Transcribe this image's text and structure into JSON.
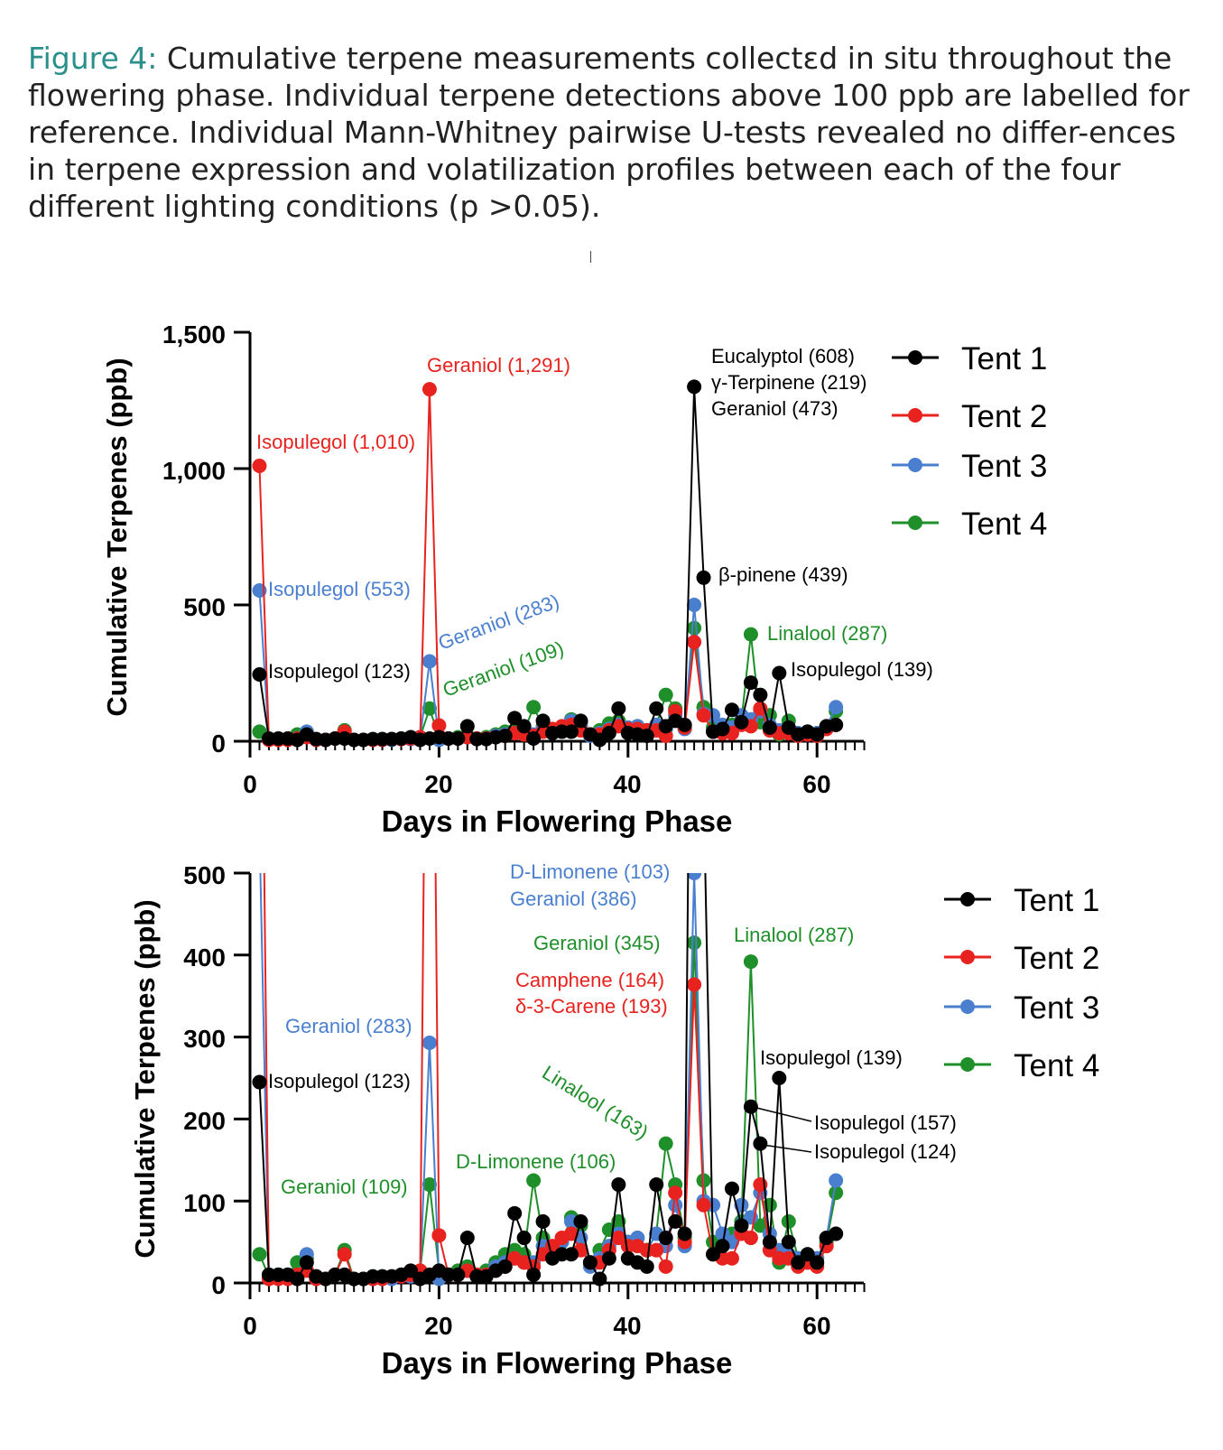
{
  "caption": {
    "lead": "Figure 4:",
    "text": "Cumulative terpene measurements collectɛd in situ throughout the flowering phase. Individual terpene detections above 100 ppb are labelled for reference. Individual Mann-Whitney pairwise U-tests revealed no differ-ences in terpene expression and volatilization profiles between each of the four different lighting conditions (p >0.05)."
  },
  "colors": {
    "tent1": "#000000",
    "tent2": "#e8231f",
    "tent3": "#4a7fd0",
    "tent4": "#1f8f2a",
    "caption_lead": "#2a8f8a"
  },
  "chart_data": [
    {
      "type": "line",
      "xlabel": "Days in Flowering Phase",
      "ylabel": "Cumulative Terpenes (ppb)",
      "xlim": [
        0,
        65
      ],
      "ylim": [
        0,
        1500
      ],
      "xticks": [
        "0",
        "20",
        "40",
        "60"
      ],
      "yticks": [
        "0",
        "500",
        "1,000",
        "1,500"
      ],
      "legend": [
        "Tent 1",
        "Tent 2",
        "Tent 3",
        "Tent 4"
      ],
      "legend_position": "right",
      "annotations": [
        {
          "text": "Geraniol (1,291)",
          "series": "Tent 2"
        },
        {
          "text": "Isopulegol (1,010)",
          "series": "Tent 2"
        },
        {
          "text": "Isopulegol (553)",
          "series": "Tent 3"
        },
        {
          "text": "Isopulegol (123)",
          "series": "Tent 1"
        },
        {
          "text": "Geraniol (283)",
          "series": "Tent 3"
        },
        {
          "text": "Geraniol (109)",
          "series": "Tent 4"
        },
        {
          "text": "Eucalyptol (608)",
          "series": "Tent 1"
        },
        {
          "text": "γ-Terpinene (219)",
          "series": "Tent 1"
        },
        {
          "text": "Geraniol (473)",
          "series": "Tent 1"
        },
        {
          "text": "β-pinene (439)",
          "series": "Tent 1"
        },
        {
          "text": "Linalool (287)",
          "series": "Tent 4"
        },
        {
          "text": "Isopulegol (139)",
          "series": "Tent 1"
        }
      ]
    },
    {
      "type": "line",
      "xlabel": "Days in Flowering Phase",
      "ylabel": "Cumulative Terpenes (ppb)",
      "xlim": [
        0,
        65
      ],
      "ylim": [
        0,
        500
      ],
      "xticks": [
        "0",
        "20",
        "40",
        "60"
      ],
      "yticks": [
        "0",
        "100",
        "200",
        "300",
        "400",
        "500"
      ],
      "legend": [
        "Tent 1",
        "Tent 2",
        "Tent 3",
        "Tent 4"
      ],
      "legend_position": "right",
      "annotations": [
        {
          "text": "D-Limonene (103)",
          "series": "Tent 3"
        },
        {
          "text": "Geraniol (386)",
          "series": "Tent 3"
        },
        {
          "text": "Geraniol (345)",
          "series": "Tent 4"
        },
        {
          "text": "Camphene (164)",
          "series": "Tent 2"
        },
        {
          "text": "δ-3-Carene (193)",
          "series": "Tent 2"
        },
        {
          "text": "Linalool (287)",
          "series": "Tent 4"
        },
        {
          "text": "Geraniol (283)",
          "series": "Tent 3"
        },
        {
          "text": "Isopulegol (123)",
          "series": "Tent 1"
        },
        {
          "text": "Isopulegol (139)",
          "series": "Tent 1"
        },
        {
          "text": "Isopulegol (157)",
          "series": "Tent 1"
        },
        {
          "text": "Isopulegol (124)",
          "series": "Tent 1"
        },
        {
          "text": "Linalool (163)",
          "series": "Tent 4"
        },
        {
          "text": "D-Limonene (106)",
          "series": "Tent 4"
        },
        {
          "text": "Geraniol (109)",
          "series": "Tent 4"
        }
      ]
    }
  ],
  "series": [
    {
      "name": "Tent 1",
      "color": "#000000",
      "x": [
        1,
        2,
        3,
        4,
        5,
        6,
        7,
        8,
        9,
        10,
        11,
        12,
        13,
        14,
        15,
        16,
        17,
        18,
        19,
        20,
        21,
        22,
        23,
        24,
        25,
        26,
        27,
        28,
        29,
        30,
        31,
        32,
        33,
        34,
        35,
        36,
        37,
        38,
        39,
        40,
        41,
        42,
        43,
        44,
        45,
        46,
        47,
        48,
        49,
        50,
        51,
        52,
        53,
        54,
        55,
        56,
        57,
        58,
        59,
        60,
        61,
        62
      ],
      "y": [
        245,
        10,
        10,
        10,
        5,
        25,
        8,
        5,
        10,
        10,
        5,
        5,
        8,
        8,
        8,
        10,
        15,
        5,
        10,
        15,
        10,
        10,
        55,
        8,
        8,
        15,
        20,
        85,
        55,
        10,
        75,
        30,
        35,
        35,
        75,
        25,
        5,
        30,
        120,
        30,
        25,
        20,
        120,
        55,
        75,
        60,
        1300,
        600,
        35,
        45,
        115,
        70,
        215,
        170,
        50,
        250,
        50,
        25,
        35,
        25,
        55,
        60
      ]
    },
    {
      "name": "Tent 2",
      "color": "#e8231f",
      "x": [
        1,
        2,
        3,
        4,
        5,
        6,
        7,
        8,
        9,
        10,
        11,
        12,
        13,
        14,
        15,
        16,
        17,
        18,
        19,
        20,
        21,
        22,
        23,
        24,
        25,
        26,
        27,
        28,
        29,
        30,
        31,
        32,
        33,
        34,
        35,
        36,
        37,
        38,
        39,
        40,
        41,
        42,
        43,
        44,
        45,
        46,
        47,
        48,
        49,
        50,
        51,
        52,
        53,
        54,
        55,
        56,
        57,
        58,
        59,
        60,
        61,
        62
      ],
      "y": [
        1010,
        5,
        5,
        5,
        10,
        15,
        5,
        5,
        10,
        35,
        5,
        5,
        5,
        5,
        8,
        8,
        10,
        15,
        1291,
        58,
        10,
        10,
        15,
        10,
        10,
        15,
        20,
        30,
        25,
        20,
        35,
        45,
        55,
        60,
        40,
        25,
        25,
        40,
        55,
        45,
        45,
        40,
        40,
        20,
        110,
        50,
        364,
        95,
        35,
        30,
        30,
        60,
        55,
        120,
        40,
        30,
        30,
        20,
        25,
        20,
        45,
        60
      ]
    },
    {
      "name": "Tent 3",
      "color": "#4a7fd0",
      "x": [
        1,
        2,
        3,
        4,
        5,
        6,
        7,
        8,
        9,
        10,
        11,
        12,
        13,
        14,
        15,
        16,
        17,
        18,
        19,
        20,
        21,
        22,
        23,
        24,
        25,
        26,
        27,
        28,
        29,
        30,
        31,
        32,
        33,
        34,
        35,
        36,
        37,
        38,
        39,
        40,
        41,
        42,
        43,
        44,
        45,
        46,
        47,
        48,
        49,
        50,
        51,
        52,
        53,
        54,
        55,
        56,
        57,
        58,
        59,
        60,
        61,
        62
      ],
      "y": [
        553,
        8,
        10,
        10,
        10,
        35,
        8,
        5,
        10,
        10,
        5,
        5,
        5,
        8,
        5,
        10,
        8,
        10,
        293,
        5,
        10,
        10,
        15,
        10,
        10,
        20,
        25,
        30,
        25,
        25,
        45,
        40,
        50,
        75,
        55,
        20,
        30,
        45,
        60,
        50,
        55,
        40,
        60,
        45,
        95,
        45,
        500,
        100,
        95,
        60,
        50,
        95,
        80,
        110,
        60,
        40,
        35,
        30,
        25,
        30,
        55,
        125
      ]
    },
    {
      "name": "Tent 4",
      "color": "#1f8f2a",
      "x": [
        1,
        2,
        3,
        4,
        5,
        6,
        7,
        8,
        9,
        10,
        11,
        12,
        13,
        14,
        15,
        16,
        17,
        18,
        19,
        20,
        21,
        22,
        23,
        24,
        25,
        26,
        27,
        28,
        29,
        30,
        31,
        32,
        33,
        34,
        35,
        36,
        37,
        38,
        39,
        40,
        41,
        42,
        43,
        44,
        45,
        46,
        47,
        48,
        49,
        50,
        51,
        52,
        53,
        54,
        55,
        56,
        57,
        58,
        59,
        60,
        61,
        62
      ],
      "y": [
        35,
        8,
        10,
        10,
        25,
        30,
        8,
        5,
        10,
        40,
        5,
        5,
        8,
        8,
        8,
        10,
        10,
        15,
        120,
        15,
        10,
        15,
        20,
        10,
        15,
        25,
        35,
        40,
        35,
        125,
        55,
        35,
        50,
        80,
        70,
        25,
        40,
        65,
        75,
        50,
        55,
        40,
        60,
        170,
        120,
        55,
        415,
        125,
        50,
        50,
        60,
        75,
        392,
        70,
        95,
        25,
        75,
        30,
        35,
        30,
        50,
        110
      ]
    }
  ]
}
